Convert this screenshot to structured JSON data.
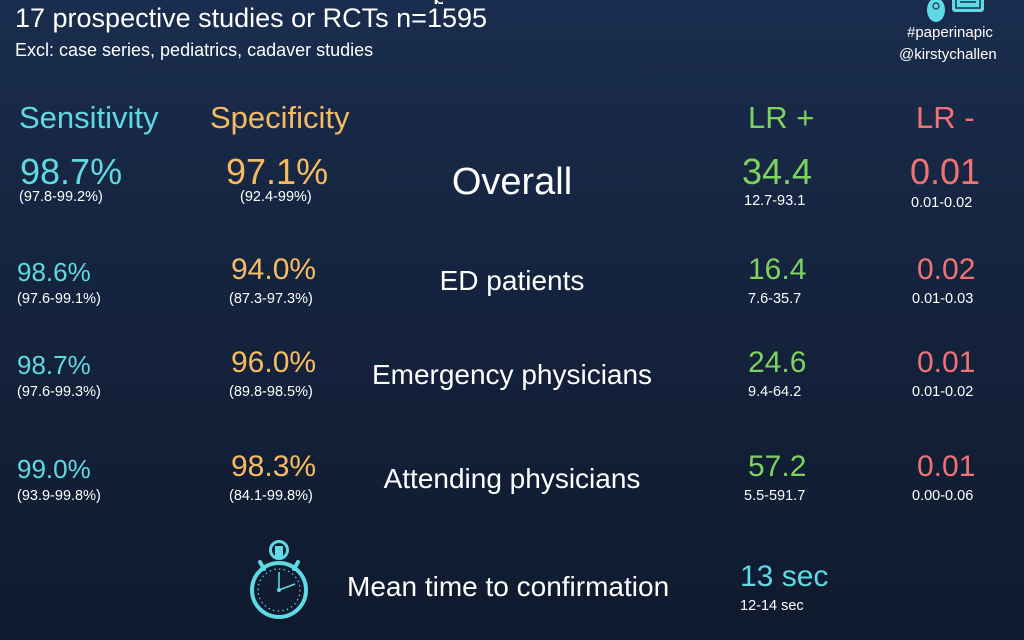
{
  "header": {
    "title": "17 prospective studies or RCTs n=1595",
    "exclusions": "Excl: case series, pediatrics, cadaver studies",
    "hashtag": "#paperinapic",
    "handle": "@kirstychallen"
  },
  "columns": {
    "sensitivity": "Sensitivity",
    "specificity": "Specificity",
    "lr_pos": "LR +",
    "lr_neg": "LR -"
  },
  "rows": [
    {
      "label": "Overall",
      "sens": "98.7%",
      "sens_ci": "(97.8-99.2%)",
      "spec": "97.1%",
      "spec_ci": "(92.4-99%)",
      "lrp": "34.4",
      "lrp_ci": "12.7-93.1",
      "lrn": "0.01",
      "lrn_ci": "0.01-0.02"
    },
    {
      "label": "ED patients",
      "sens": "98.6%",
      "sens_ci": "(97.6-99.1%)",
      "spec": "94.0%",
      "spec_ci": "(87.3-97.3%)",
      "lrp": "16.4",
      "lrp_ci": "7.6-35.7",
      "lrn": "0.02",
      "lrn_ci": "0.01-0.03"
    },
    {
      "label": "Emergency physicians",
      "sens": "98.7%",
      "sens_ci": "(97.6-99.3%)",
      "spec": "96.0%",
      "spec_ci": "(89.8-98.5%)",
      "lrp": "24.6",
      "lrp_ci": "9.4-64.2",
      "lrn": "0.01",
      "lrn_ci": "0.01-0.02"
    },
    {
      "label": "Attending physicians",
      "sens": "99.0%",
      "sens_ci": "(93.9-99.8%)",
      "spec": "98.3%",
      "spec_ci": "(84.1-99.8%)",
      "lrp": "57.2",
      "lrp_ci": "5.5-591.7",
      "lrn": "0.01",
      "lrn_ci": "0.00-0.06"
    }
  ],
  "timer": {
    "label": "Mean time to confirmation",
    "value": "13 sec",
    "range": "12-14 sec",
    "icon": "stopwatch-icon"
  },
  "colors": {
    "sensitivity": "#5fd9e3",
    "specificity": "#f6bb62",
    "lr_pos": "#7ed35f",
    "lr_neg": "#f07272"
  }
}
